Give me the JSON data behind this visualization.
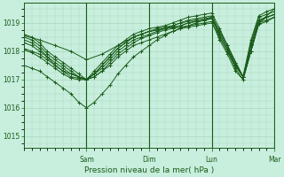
{
  "bg_color": "#c8eedd",
  "grid_color": "#a8d8c0",
  "line_color": "#1a5c1a",
  "xlabel": "Pression niveau de la mer( hPa )",
  "yticks": [
    1015,
    1016,
    1017,
    1018,
    1019
  ],
  "ylim": [
    1014.6,
    1019.7
  ],
  "xlim": [
    0,
    96
  ],
  "vline_positions": [
    24,
    48,
    72,
    96
  ],
  "vline_labels": [
    "Sam",
    "Dim",
    "Lun",
    "Mar"
  ],
  "lines": [
    {
      "x": [
        0,
        3,
        6,
        9,
        12,
        15,
        18,
        21,
        24,
        27,
        30,
        33,
        36,
        39,
        42,
        45,
        48,
        51,
        54,
        57,
        60,
        63,
        66,
        69,
        72,
        75,
        78,
        81,
        84,
        87,
        90,
        93,
        96
      ],
      "y": [
        1018.1,
        1018.0,
        1017.9,
        1017.7,
        1017.5,
        1017.3,
        1017.2,
        1017.1,
        1017.0,
        1017.1,
        1017.3,
        1017.5,
        1017.8,
        1018.0,
        1018.2,
        1018.3,
        1018.4,
        1018.5,
        1018.6,
        1018.7,
        1018.8,
        1018.85,
        1018.9,
        1018.95,
        1019.0,
        1018.5,
        1018.0,
        1017.5,
        1017.1,
        1018.0,
        1019.0,
        1019.1,
        1019.2
      ]
    },
    {
      "x": [
        0,
        3,
        6,
        9,
        12,
        15,
        18,
        21,
        24,
        27,
        30,
        33,
        36,
        39,
        42,
        45,
        48,
        51,
        54,
        57,
        60,
        63,
        66,
        69,
        72,
        75,
        78,
        81,
        84,
        87,
        90,
        93,
        96
      ],
      "y": [
        1018.3,
        1018.2,
        1018.0,
        1017.8,
        1017.6,
        1017.4,
        1017.2,
        1017.1,
        1017.0,
        1017.2,
        1017.4,
        1017.7,
        1018.0,
        1018.2,
        1018.4,
        1018.5,
        1018.6,
        1018.7,
        1018.8,
        1018.85,
        1018.9,
        1019.0,
        1019.05,
        1019.1,
        1019.15,
        1018.6,
        1018.1,
        1017.5,
        1017.1,
        1018.2,
        1019.1,
        1019.2,
        1019.3
      ]
    },
    {
      "x": [
        0,
        3,
        6,
        9,
        12,
        15,
        18,
        21,
        24,
        27,
        30,
        33,
        36,
        39,
        42,
        45,
        48,
        51,
        54,
        57,
        60,
        63,
        66,
        69,
        72,
        75,
        78,
        81,
        84,
        87,
        90,
        93,
        96
      ],
      "y": [
        1018.5,
        1018.4,
        1018.2,
        1017.9,
        1017.7,
        1017.5,
        1017.3,
        1017.1,
        1017.0,
        1017.2,
        1017.5,
        1017.8,
        1018.1,
        1018.3,
        1018.5,
        1018.6,
        1018.7,
        1018.8,
        1018.85,
        1018.9,
        1019.0,
        1019.1,
        1019.15,
        1019.2,
        1019.25,
        1018.7,
        1018.2,
        1017.6,
        1017.1,
        1018.3,
        1019.2,
        1019.3,
        1019.4
      ]
    },
    {
      "x": [
        0,
        3,
        6,
        9,
        12,
        15,
        18,
        21,
        24,
        27,
        30,
        33,
        36,
        39,
        42,
        45,
        48,
        51,
        54,
        57,
        60,
        63,
        66,
        69,
        72,
        75,
        78,
        81,
        84,
        87,
        90,
        93,
        96
      ],
      "y": [
        1018.6,
        1018.5,
        1018.3,
        1018.0,
        1017.8,
        1017.6,
        1017.4,
        1017.2,
        1017.0,
        1017.3,
        1017.6,
        1017.9,
        1018.2,
        1018.4,
        1018.6,
        1018.7,
        1018.8,
        1018.85,
        1018.9,
        1019.0,
        1019.1,
        1019.2,
        1019.25,
        1019.3,
        1019.35,
        1018.8,
        1018.2,
        1017.6,
        1017.1,
        1018.4,
        1019.25,
        1019.4,
        1019.5
      ]
    },
    {
      "x": [
        0,
        3,
        6,
        9,
        12,
        15,
        18,
        21,
        24,
        27,
        30,
        33,
        36,
        39,
        42,
        45,
        48,
        51,
        54,
        57,
        60,
        63,
        66,
        69,
        72,
        75,
        78,
        81,
        84,
        87,
        90,
        93,
        96
      ],
      "y": [
        1017.5,
        1017.4,
        1017.3,
        1017.1,
        1016.9,
        1016.7,
        1016.5,
        1016.2,
        1016.0,
        1016.2,
        1016.5,
        1016.8,
        1017.2,
        1017.5,
        1017.8,
        1018.0,
        1018.2,
        1018.4,
        1018.55,
        1018.7,
        1018.8,
        1018.9,
        1019.0,
        1019.1,
        1019.2,
        1018.5,
        1018.0,
        1017.4,
        1017.0,
        1018.0,
        1019.0,
        1019.2,
        1019.3
      ]
    },
    {
      "x": [
        0,
        3,
        6,
        9,
        12,
        15,
        18,
        21,
        24,
        27,
        30,
        33,
        36,
        39,
        42,
        45,
        48,
        51,
        54,
        57,
        60,
        63,
        66,
        69,
        72,
        75,
        78,
        81,
        84,
        87,
        90,
        93,
        96
      ],
      "y": [
        1018.4,
        1018.3,
        1018.1,
        1017.8,
        1017.5,
        1017.3,
        1017.1,
        1017.05,
        1017.0,
        1017.2,
        1017.5,
        1017.8,
        1018.1,
        1018.3,
        1018.5,
        1018.6,
        1018.7,
        1018.75,
        1018.8,
        1018.85,
        1018.9,
        1019.0,
        1019.05,
        1019.1,
        1019.15,
        1018.6,
        1018.1,
        1017.5,
        1017.1,
        1018.2,
        1019.1,
        1019.2,
        1019.3
      ]
    },
    {
      "x": [
        0,
        3,
        6,
        9,
        12,
        15,
        18,
        21,
        24,
        27,
        30,
        33,
        36,
        39,
        42,
        45,
        48,
        51,
        54,
        57,
        60,
        63,
        66,
        69,
        72,
        75,
        78,
        81,
        84,
        87,
        90,
        93,
        96
      ],
      "y": [
        1018.05,
        1017.95,
        1017.8,
        1017.6,
        1017.4,
        1017.2,
        1017.05,
        1017.0,
        1017.0,
        1017.1,
        1017.3,
        1017.6,
        1017.9,
        1018.1,
        1018.3,
        1018.45,
        1018.55,
        1018.65,
        1018.75,
        1018.8,
        1018.85,
        1018.9,
        1018.95,
        1019.0,
        1019.05,
        1018.4,
        1017.9,
        1017.3,
        1017.0,
        1018.0,
        1018.95,
        1019.05,
        1019.2
      ]
    },
    {
      "x": [
        0,
        6,
        12,
        18,
        24,
        30,
        36,
        42,
        48,
        54,
        60,
        66,
        72,
        78,
        84,
        90,
        96
      ],
      "y": [
        1018.55,
        1018.4,
        1018.2,
        1018.0,
        1017.7,
        1017.9,
        1018.2,
        1018.5,
        1018.7,
        1018.8,
        1019.0,
        1019.1,
        1019.2,
        1018.2,
        1017.1,
        1019.0,
        1019.5
      ]
    }
  ]
}
